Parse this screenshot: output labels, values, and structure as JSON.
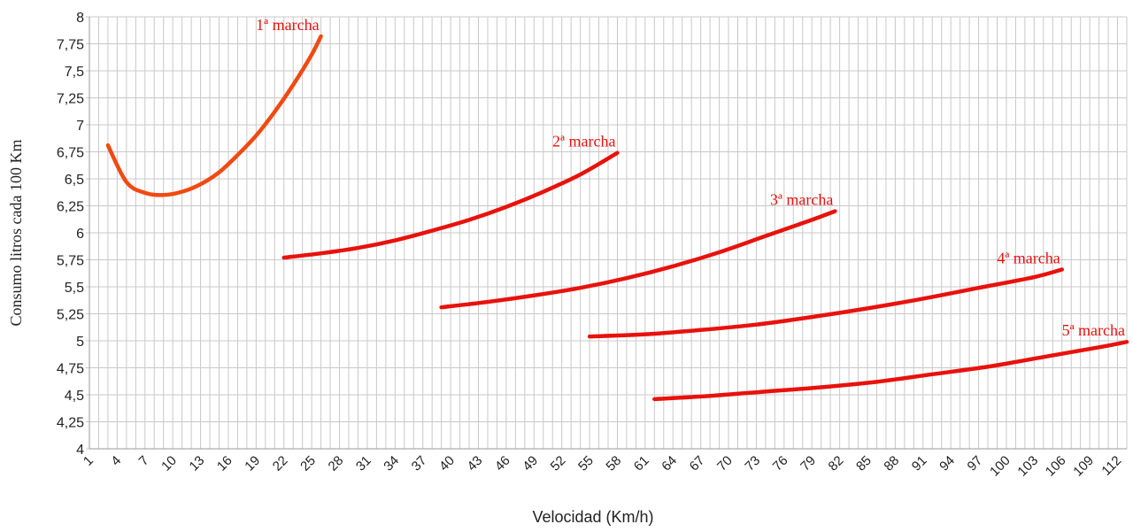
{
  "chart_data": {
    "type": "line",
    "title": "",
    "xlabel": "Velocidad (Km/h)",
    "ylabel": "Consumo litros cada 100 Km",
    "xlim": [
      1,
      113
    ],
    "ylim": [
      4,
      8
    ],
    "x_tick_labels": [
      "1",
      "4",
      "7",
      "10",
      "13",
      "16",
      "19",
      "22",
      "25",
      "28",
      "31",
      "34",
      "37",
      "40",
      "43",
      "46",
      "49",
      "52",
      "55",
      "58",
      "61",
      "64",
      "67",
      "70",
      "73",
      "76",
      "79",
      "82",
      "85",
      "88",
      "91",
      "94",
      "97",
      "100",
      "103",
      "106",
      "109",
      "112"
    ],
    "y_tick_labels": [
      "4",
      "4,25",
      "4,5",
      "4,75",
      "5",
      "5,25",
      "5,5",
      "5,75",
      "6",
      "6,25",
      "6,5",
      "6,75",
      "7",
      "7,25",
      "7,5",
      "7,75",
      "8"
    ],
    "grid": true,
    "colors": {
      "gear1": "#f04a12",
      "others": "#e8120c",
      "label": "#e8120c",
      "grid": "#c8c8c8"
    },
    "series": [
      {
        "name": "1ª marcha",
        "x": [
          3,
          5,
          7,
          9,
          11,
          13,
          15,
          17,
          19,
          21,
          23,
          25,
          26
        ],
        "y": [
          6.81,
          6.47,
          6.37,
          6.35,
          6.38,
          6.45,
          6.56,
          6.72,
          6.9,
          7.12,
          7.37,
          7.65,
          7.82
        ]
      },
      {
        "name": "2ª marcha",
        "x": [
          22,
          26,
          30,
          34,
          38,
          42,
          46,
          50,
          54,
          58
        ],
        "y": [
          5.77,
          5.81,
          5.86,
          5.93,
          6.02,
          6.12,
          6.24,
          6.38,
          6.54,
          6.74
        ]
      },
      {
        "name": "3ª marcha",
        "x": [
          39,
          44,
          49,
          54,
          59,
          64,
          69,
          74,
          79,
          81.5
        ],
        "y": [
          5.31,
          5.36,
          5.42,
          5.49,
          5.58,
          5.69,
          5.82,
          5.97,
          6.12,
          6.2
        ]
      },
      {
        "name": "4ª marcha",
        "x": [
          55,
          61,
          67,
          73,
          79,
          85,
          91,
          97,
          103,
          106
        ],
        "y": [
          5.04,
          5.06,
          5.1,
          5.15,
          5.22,
          5.3,
          5.39,
          5.49,
          5.59,
          5.66
        ]
      },
      {
        "name": "5ª marcha",
        "x": [
          62,
          68,
          74,
          80,
          86,
          92,
          98,
          104,
          110,
          113
        ],
        "y": [
          4.46,
          4.49,
          4.53,
          4.57,
          4.62,
          4.69,
          4.76,
          4.85,
          4.94,
          4.99
        ]
      }
    ]
  }
}
